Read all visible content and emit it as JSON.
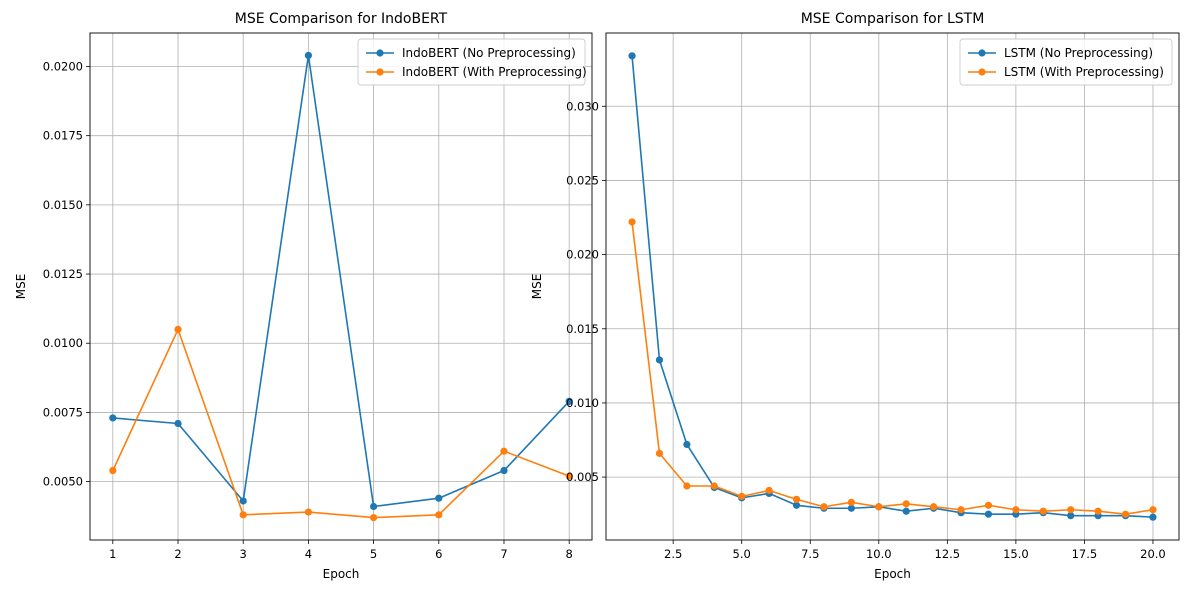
{
  "colors": {
    "no_preprocessing": "#1f77b4",
    "with_preprocessing": "#ff7f0e",
    "grid": "#b0b0b0"
  },
  "chart_data": [
    {
      "type": "line",
      "title": "MSE Comparison for IndoBERT",
      "xlabel": "Epoch",
      "ylabel": "MSE",
      "grid": true,
      "legend_position": "upper-right",
      "xlim": [
        0.65,
        8.35
      ],
      "ylim": [
        0.00289,
        0.02121
      ],
      "xticks": [
        1,
        2,
        3,
        4,
        5,
        6,
        7,
        8
      ],
      "xtick_labels": [
        "1",
        "2",
        "3",
        "4",
        "5",
        "6",
        "7",
        "8"
      ],
      "yticks": [
        0.005,
        0.0075,
        0.01,
        0.0125,
        0.015,
        0.0175,
        0.02
      ],
      "ytick_labels": [
        "0.0050",
        "0.0075",
        "0.0100",
        "0.0125",
        "0.0150",
        "0.0175",
        "0.0200"
      ],
      "x": [
        1,
        2,
        3,
        4,
        5,
        6,
        7,
        8
      ],
      "series": [
        {
          "name": "IndoBERT (No Preprocessing)",
          "color": "#1f77b4",
          "values": [
            0.0073,
            0.0071,
            0.0043,
            0.0204,
            0.0041,
            0.0044,
            0.0054,
            0.0079
          ]
        },
        {
          "name": "IndoBERT (With Preprocessing)",
          "color": "#ff7f0e",
          "values": [
            0.0054,
            0.0105,
            0.0038,
            0.0039,
            0.0037,
            0.0038,
            0.0061,
            0.0052
          ]
        }
      ]
    },
    {
      "type": "line",
      "title": "MSE Comparison for LSTM",
      "xlabel": "Epoch",
      "ylabel": "MSE",
      "grid": true,
      "legend_position": "upper-right",
      "xlim": [
        0.05,
        20.95
      ],
      "ylim": [
        0.00076,
        0.03494
      ],
      "xticks": [
        2.5,
        5,
        7.5,
        10,
        12.5,
        15,
        17.5,
        20
      ],
      "xtick_labels": [
        "2.5",
        "5.0",
        "7.5",
        "10.0",
        "12.5",
        "15.0",
        "17.5",
        "20.0"
      ],
      "yticks": [
        0.005,
        0.01,
        0.015,
        0.02,
        0.025,
        0.03
      ],
      "ytick_labels": [
        "0.005",
        "0.010",
        "0.015",
        "0.020",
        "0.025",
        "0.030"
      ],
      "x": [
        1,
        2,
        3,
        4,
        5,
        6,
        7,
        8,
        9,
        10,
        11,
        12,
        13,
        14,
        15,
        16,
        17,
        18,
        19,
        20
      ],
      "series": [
        {
          "name": "LSTM (No Preprocessing)",
          "color": "#1f77b4",
          "values": [
            0.0334,
            0.0129,
            0.0072,
            0.0043,
            0.0036,
            0.0039,
            0.0031,
            0.0029,
            0.0029,
            0.003,
            0.0027,
            0.0029,
            0.0026,
            0.0025,
            0.0025,
            0.0026,
            0.0024,
            0.0024,
            0.0024,
            0.0023
          ]
        },
        {
          "name": "LSTM (With Preprocessing)",
          "color": "#ff7f0e",
          "values": [
            0.0222,
            0.0066,
            0.0044,
            0.0044,
            0.0037,
            0.0041,
            0.0035,
            0.003,
            0.0033,
            0.003,
            0.0032,
            0.003,
            0.0028,
            0.0031,
            0.0028,
            0.0027,
            0.0028,
            0.0027,
            0.0025,
            0.0028
          ]
        }
      ]
    }
  ]
}
